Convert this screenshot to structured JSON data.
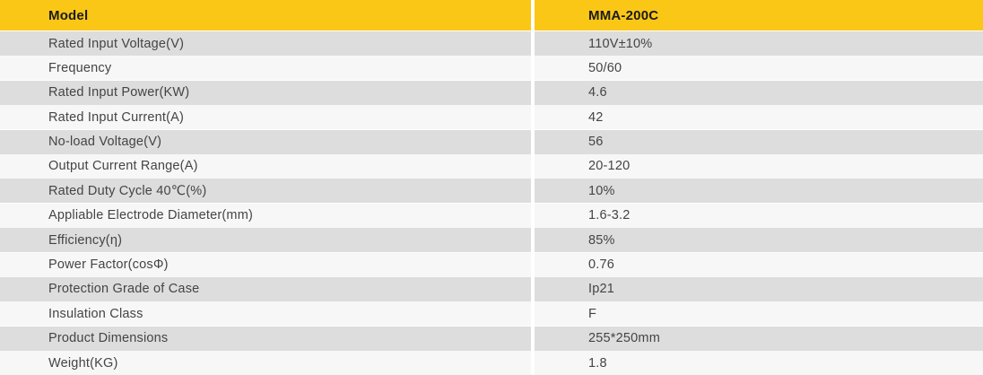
{
  "header": {
    "label": "Model",
    "value": "MMA-200C"
  },
  "rows": [
    {
      "label": "Rated Input Voltage(V)",
      "value": "110V±10%"
    },
    {
      "label": "Frequency",
      "value": "50/60"
    },
    {
      "label": "Rated Input Power(KW)",
      "value": "4.6"
    },
    {
      "label": "Rated Input Current(A)",
      "value": "42"
    },
    {
      "label": "No-load Voltage(V)",
      "value": "56"
    },
    {
      "label": "Output Current Range(A)",
      "value": "20-120"
    },
    {
      "label": "Rated Duty Cycle 40℃(%)",
      "value": "10%"
    },
    {
      "label": "Appliable Electrode Diameter(mm)",
      "value": "1.6-3.2"
    },
    {
      "label": "Efficiency(η)",
      "value": "85%"
    },
    {
      "label": "Power Factor(cosΦ)",
      "value": "0.76"
    },
    {
      "label": "Protection Grade of Case",
      "value": "Ip21"
    },
    {
      "label": "Insulation Class",
      "value": "F"
    },
    {
      "label": "Product Dimensions",
      "value": "255*250mm"
    },
    {
      "label": "Weight(KG)",
      "value": "1.8"
    }
  ],
  "colors": {
    "header_bg": "#fbc716",
    "row_gray": "#dddddd",
    "row_light": "#f7f7f7",
    "text": "#444444"
  }
}
